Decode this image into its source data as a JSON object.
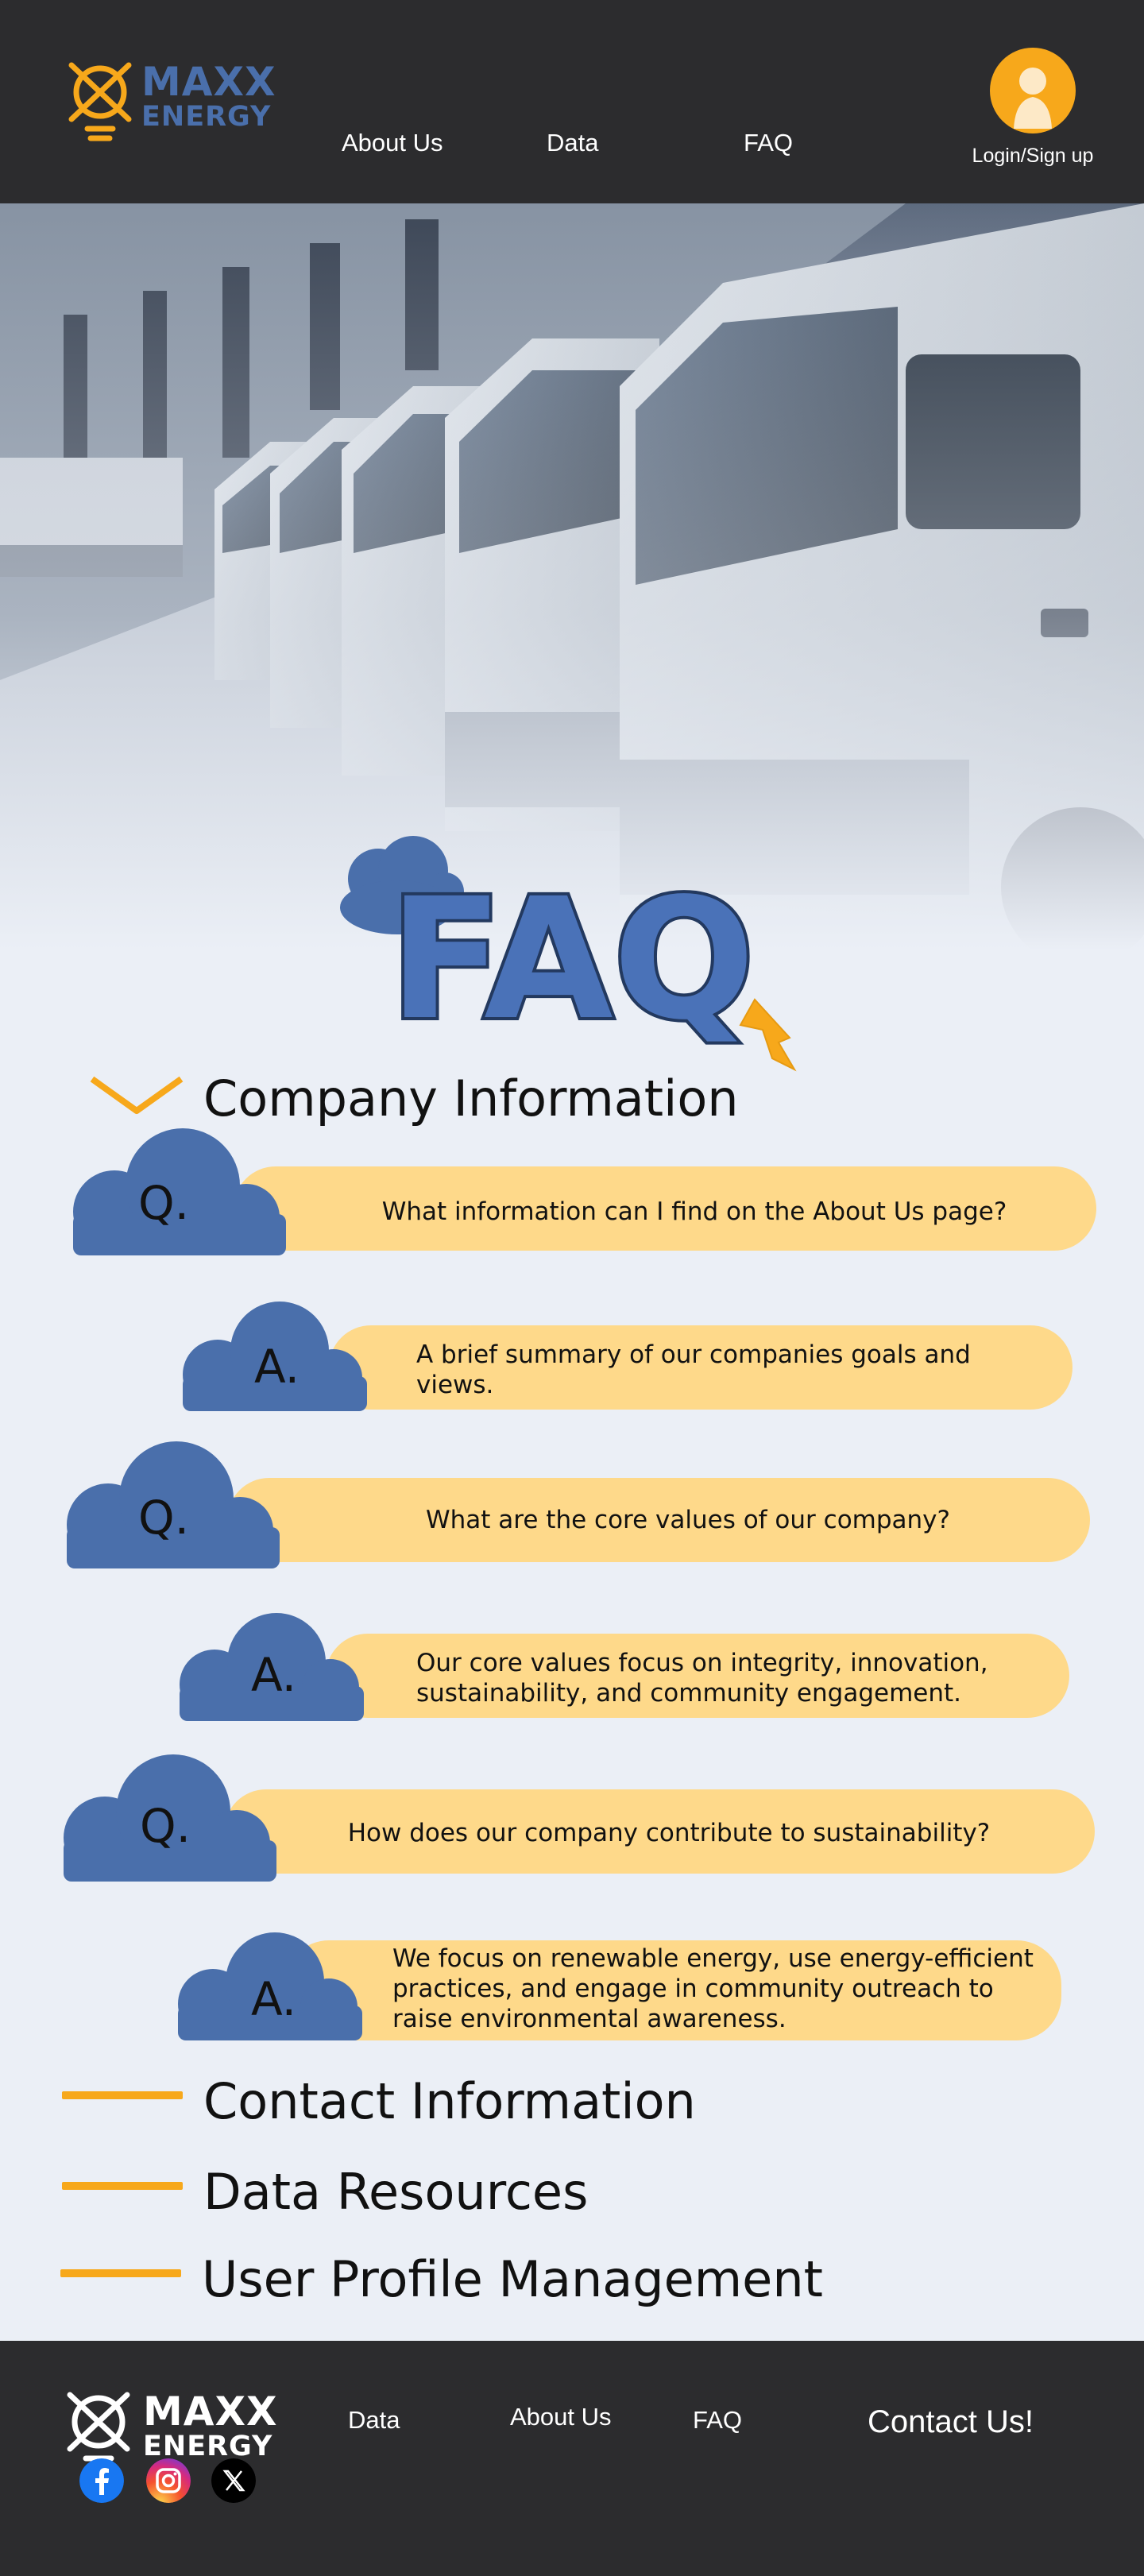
{
  "brand": {
    "line1": "MAXX",
    "line2": "ENERGY",
    "colors": {
      "brand_blue": "#4a6fab",
      "accent_orange": "#f7a81b",
      "dark": "#2c2c2e",
      "pill": "#fed98a",
      "cloud": "#4a6fab",
      "background": "#ebeff6"
    }
  },
  "header": {
    "nav": [
      {
        "label": "About Us"
      },
      {
        "label": "Data"
      },
      {
        "label": "FAQ"
      }
    ],
    "login_label": "Login/Sign up",
    "avatar_icon": "user-icon"
  },
  "hero": {
    "image": "row-of-electric-trucks-charging-photo"
  },
  "faq_title": "FAQ",
  "sections": [
    {
      "label": "Company Information",
      "expanded": true,
      "items": [
        {
          "q_letter": "Q.",
          "question": "What information can I find on the About Us page?",
          "a_letter": "A.",
          "answer": "A brief summary of our companies goals and views."
        },
        {
          "q_letter": "Q.",
          "question": "What are the core values of our company?",
          "a_letter": "A.",
          "answer": "Our core values focus on integrity, innovation, sustainability, and community engagement."
        },
        {
          "q_letter": "Q.",
          "question": "How does our company contribute to sustainability?",
          "a_letter": "A.",
          "answer": "We focus on renewable energy, use energy-efficient practices, and engage in community outreach to raise environmental awareness."
        }
      ]
    },
    {
      "label": "Contact Information",
      "expanded": false
    },
    {
      "label": "Data Resources",
      "expanded": false
    },
    {
      "label": "User Profile Management",
      "expanded": false
    }
  ],
  "footer": {
    "nav": [
      {
        "label": "Data"
      },
      {
        "label": "About Us"
      },
      {
        "label": "FAQ"
      }
    ],
    "contact_label": "Contact Us!",
    "social": [
      "facebook-icon",
      "instagram-icon",
      "x-icon"
    ]
  }
}
